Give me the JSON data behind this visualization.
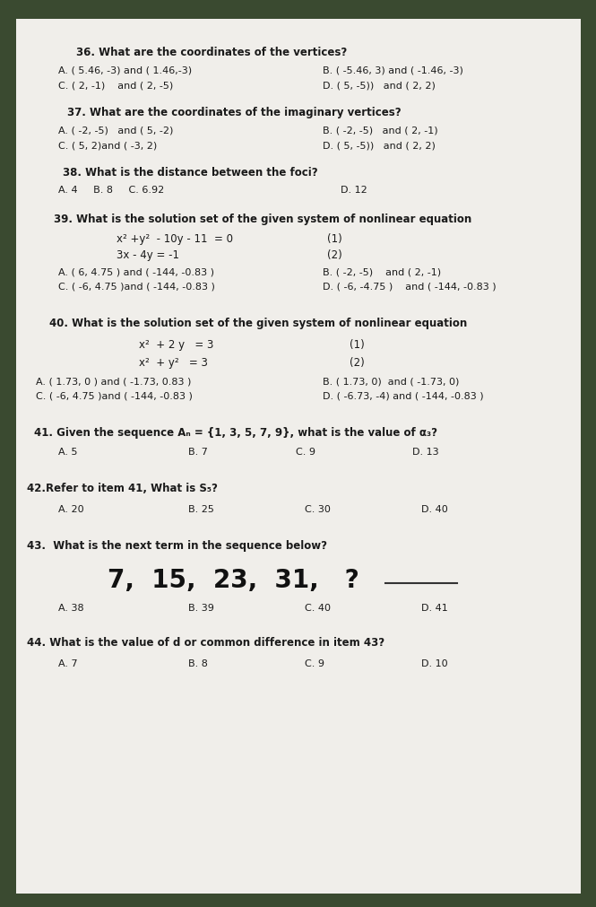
{
  "bg_color": "#3a4a30",
  "paper_color": "#f2f0eb",
  "text_color": "#1a1a1a",
  "fs_q": 8.5,
  "fs_a": 8.0,
  "fs_eq": 8.5,
  "fs_big": 20,
  "q36": {
    "question": "36. What are the coordinates of the vertices?",
    "A": "A. ( 5.46, -3) and ( 1.46,-3)",
    "B": "B. ( -5.46, 3) and ( -1.46, -3)",
    "C": "C. ( 2, -1)    and ( 2, -5)",
    "D": "D. ( 5, -5))   and ( 2, 2)"
  },
  "q37": {
    "question": "37. What are the coordinates of the imaginary vertices?",
    "A": "A. ( -2, -5)   and ( 5, -2)",
    "B": "B. ( -2, -5)   and ( 2, -1)",
    "C": "C. ( 5, 2)and ( -3, 2)",
    "D": "D. ( 5, -5))   and ( 2, 2)"
  },
  "q38": {
    "question": "38. What is the distance between the foci?",
    "ABC": "A. 4     B. 8     C. 6.92",
    "D": "D. 12"
  },
  "q39": {
    "question": "39. What is the solution set of the given system of nonlinear equation",
    "eq1": "x² +y²  - 10y - 11  = 0",
    "eq1_label": "(1)",
    "eq2": "3x - 4y = -1",
    "eq2_label": "(2)",
    "A": "A. ( 6, 4.75 ) and ( -144, -0.83 )",
    "B": "B. ( -2, -5)    and ( 2, -1)",
    "C": "C. ( -6, 4.75 )and ( -144, -0.83 )",
    "D": "D. ( -6, -4.75 )    and ( -144, -0.83 )"
  },
  "q40": {
    "question": "40. What is the solution set of the given system of nonlinear equation",
    "eq1": "x²  + 2 y   = 3",
    "eq1_label": "(1)",
    "eq2": "x²  + y²   = 3",
    "eq2_label": "(2)",
    "A": "A. ( 1.73, 0 ) and ( -1.73, 0.83 )",
    "B": "B. ( 1.73, 0)  and ( -1.73, 0)",
    "C": "C. ( -6, 4.75 )and ( -144, -0.83 )",
    "D": "D. ( -6.73, -4) and ( -144, -0.83 )"
  },
  "q41": {
    "question": "41. Given the sequence Aₙ = {1, 3, 5, 7, 9}, what is the value of α₃?",
    "A": "A. 5",
    "B": "B. 7",
    "C": "C. 9",
    "D": "D. 13"
  },
  "q42": {
    "question": "42.Refer to item 41, What is S₅?",
    "A": "A. 20",
    "B": "B. 25",
    "C": "C. 30",
    "D": "D. 40"
  },
  "q43": {
    "question": "43.  What is the next term in the sequence below?",
    "sequence": "7,  15,  23,  31,   ?",
    "A": "A. 38",
    "B": "B. 39",
    "C": "C. 40",
    "D": "D. 41"
  },
  "q44": {
    "question": "44. What is the value of d or common difference in item 43?",
    "A": "A. 7",
    "B": "B. 8",
    "C": "C. 9",
    "D": "D. 10"
  }
}
